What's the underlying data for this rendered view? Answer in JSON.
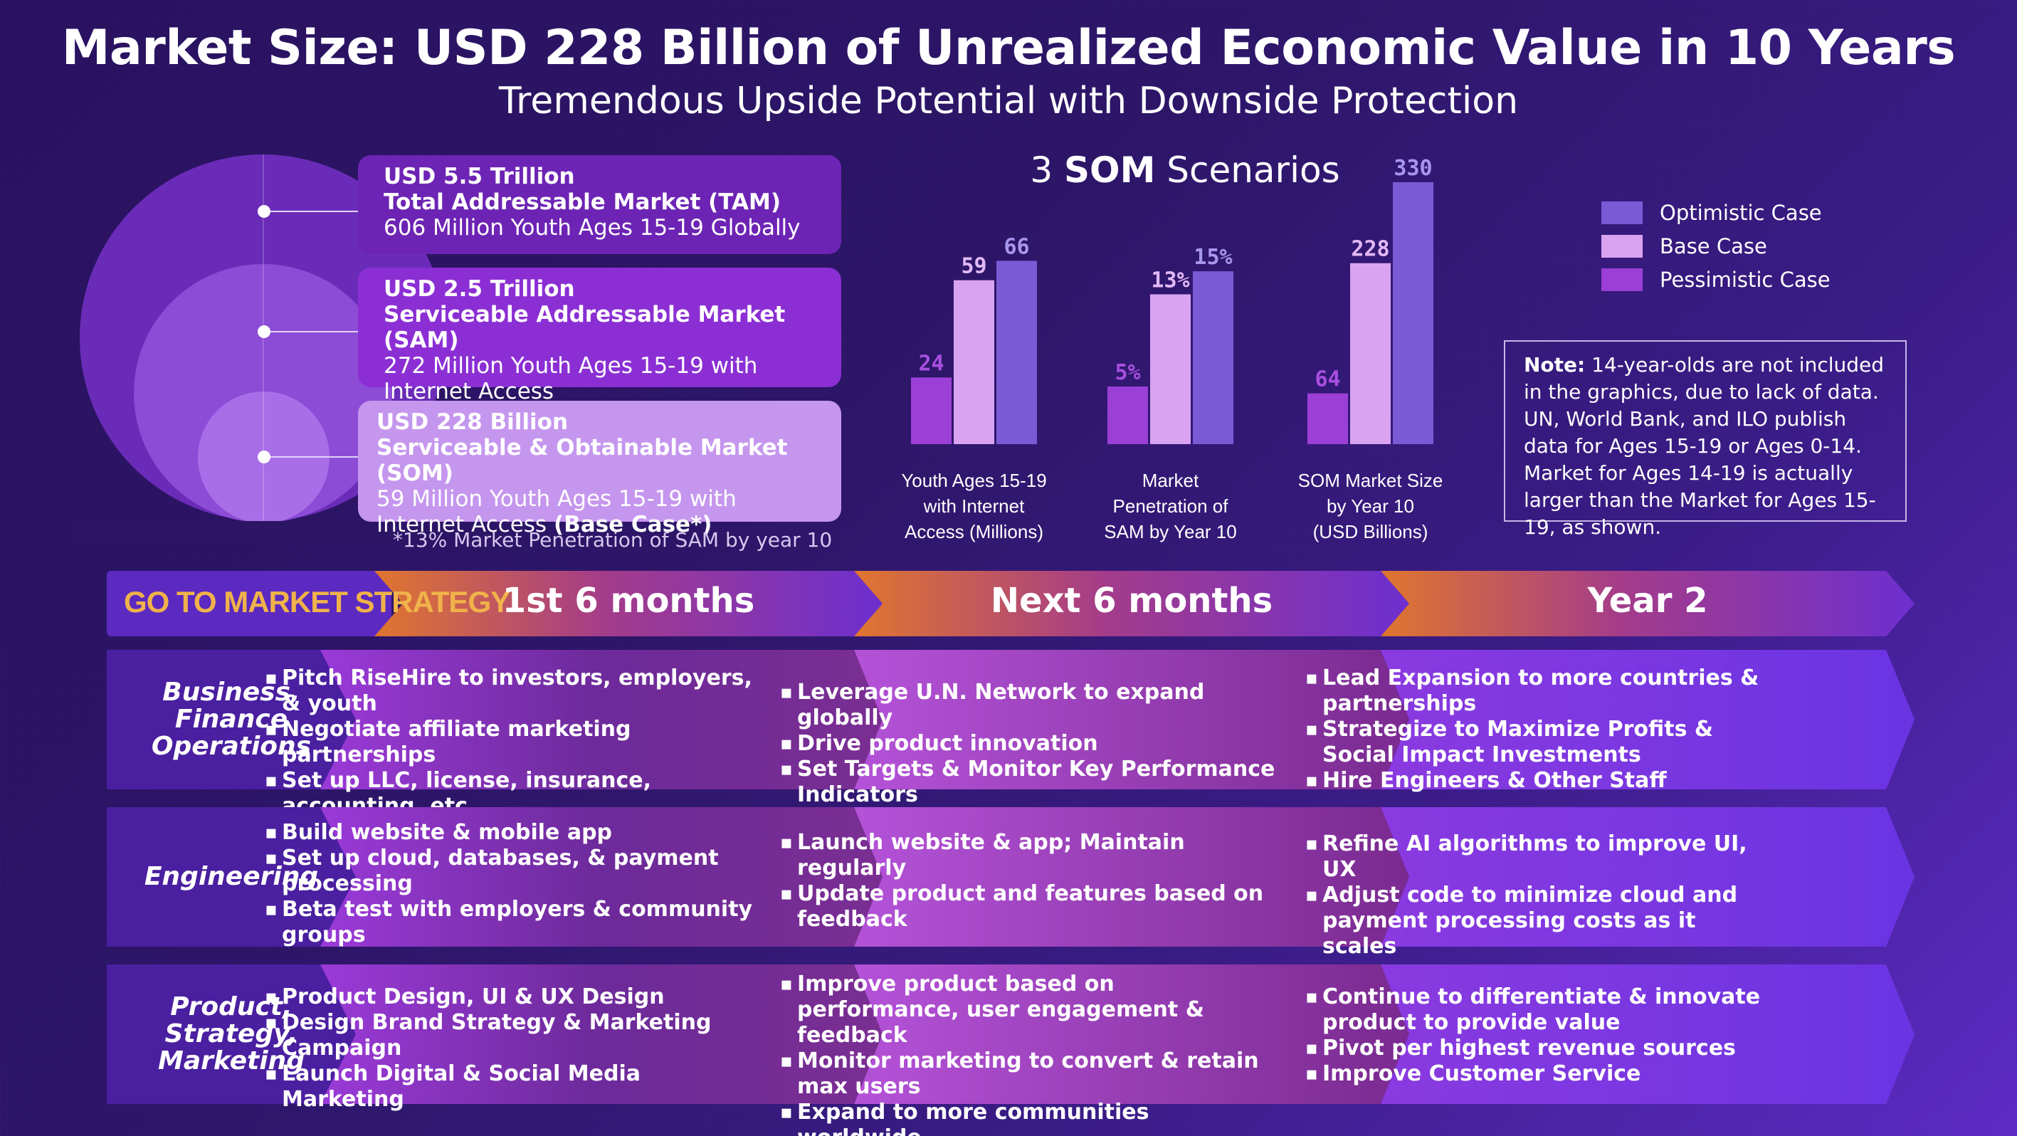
{
  "header": {
    "title": "Market Size: USD 228 Billion of Unrealized Economic Value in 10 Years",
    "subtitle": "Tremendous Upside Potential with Downside Protection"
  },
  "market": {
    "tam": {
      "amount": "USD 5.5 Trillion",
      "name": "Total Addressable Market (TAM)",
      "desc": "606 Million Youth Ages 15-19 Globally"
    },
    "sam": {
      "amount": "USD 2.5 Trillion",
      "name": "Serviceable Addressable Market (SAM)",
      "desc": "272 Million Youth Ages 15-19 with Internet Access"
    },
    "som": {
      "amount": "USD 228 Billion",
      "name": "Serviceable & Obtainable Market (SOM)",
      "desc": "59 Million Youth Ages 15-19 with Internet Access",
      "tag": "(Base Case*)"
    },
    "footnote": "*13% Market Penetration of SAM by year 10"
  },
  "chart_data": {
    "type": "bar",
    "title_prefix": "3",
    "title_bold": "SOM",
    "title_suffix": "Scenarios",
    "categories": [
      [
        "Youth Ages 15-19",
        "with Internet",
        "Access (Millions)"
      ],
      [
        "Market",
        "Penetration of",
        "SAM by Year 10"
      ],
      [
        "SOM Market Size",
        "by Year 10",
        "(USD Billions)"
      ]
    ],
    "series": [
      {
        "name": "Pessimistic Case",
        "color": "#9b3fd6",
        "values": [
          24,
          5,
          64
        ],
        "labels": [
          "24",
          "5%",
          "64"
        ]
      },
      {
        "name": "Base Case",
        "color": "#d9a3f1",
        "values": [
          59,
          13,
          228
        ],
        "labels": [
          "59",
          "13%",
          "228"
        ]
      },
      {
        "name": "Optimistic Case",
        "color": "#7b5ad6",
        "values": [
          66,
          15,
          330
        ],
        "labels": [
          "66",
          "15%",
          "330"
        ]
      }
    ],
    "label_colors": [
      "#a94fe0",
      "#e3b9f6",
      "#a896ee"
    ],
    "legend_order": [
      "Optimistic Case",
      "Base Case",
      "Pessimistic Case"
    ],
    "legend_position": "top-right"
  },
  "note": {
    "bold": "Note:",
    "text": " 14-year-olds are not included in the graphics, due to lack of data. UN, World Bank, and ILO publish data for Ages 15-19 or Ages 0-14. Market for Ages 14-19 is actually larger than the Market for Ages 15-19, as shown."
  },
  "strategy": {
    "label": "GO TO MARKET STRATEGY",
    "phases": [
      "1st 6 months",
      "Next 6 months",
      "Year 2"
    ],
    "rows": [
      {
        "label": [
          "Business,",
          "Finance",
          "Operations"
        ],
        "cells": [
          [
            "Pitch RiseHire to investors, employers, & youth",
            "Negotiate affiliate marketing partnerships",
            "Set up LLC, license, insurance, accounting, etc."
          ],
          [
            "Leverage U.N. Network to expand globally",
            "Drive product innovation",
            "Set Targets & Monitor Key Performance Indicators"
          ],
          [
            "Lead Expansion to more countries & partnerships",
            "Strategize to Maximize Profits & Social Impact Investments",
            "Hire Engineers & Other Staff"
          ]
        ]
      },
      {
        "label": [
          "Engineering"
        ],
        "cells": [
          [
            "Build website & mobile app",
            "Set up cloud, databases, & payment processing",
            "Beta test with employers & community groups"
          ],
          [
            "Launch website & app; Maintain regularly",
            "Update product and features based on feedback"
          ],
          [
            "Refine AI algorithms to improve UI, UX",
            "Adjust code to minimize cloud and payment processing costs as it scales"
          ]
        ]
      },
      {
        "label": [
          "Product,",
          "Strategy,",
          "Marketing"
        ],
        "cells": [
          [
            "Product Design, UI & UX Design",
            "Design Brand Strategy & Marketing Campaign",
            "Launch Digital & Social Media Marketing"
          ],
          [
            "Improve product based on performance, user engagement & feedback",
            "Monitor marketing to convert & retain max users",
            "Expand to more communities worldwide"
          ],
          [
            "Continue to differentiate & innovate product to provide value",
            "Pivot per highest revenue sources",
            "Improve Customer Service"
          ]
        ]
      }
    ]
  }
}
